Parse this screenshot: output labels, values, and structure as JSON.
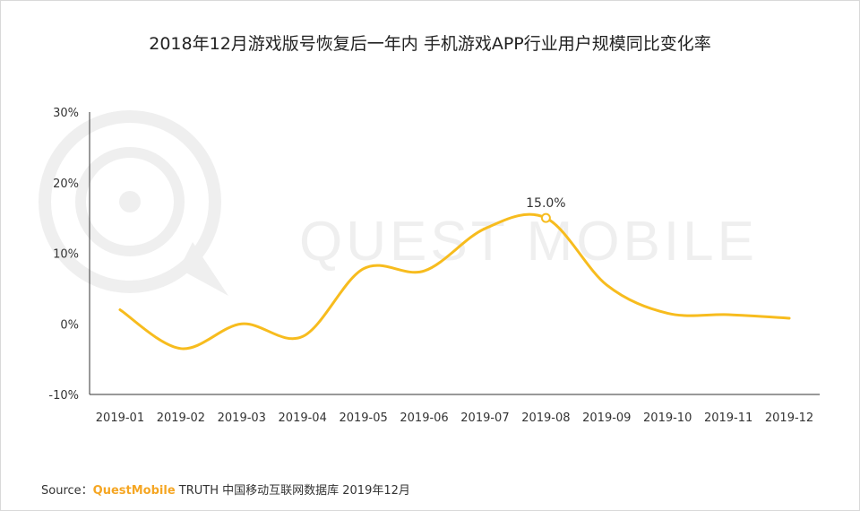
{
  "title": "2018年12月游戏版号恢复后一年内 手机游戏APP行业用户规模同比变化率",
  "watermark": "QUEST MOBILE",
  "source": {
    "label": "Source：",
    "brand": "QuestMobile",
    "text": "TRUTH 中国移动互联网数据库 2019年12月"
  },
  "colors": {
    "line": "#f7bc1e",
    "axis": "#333333",
    "text": "#333333",
    "watermark": "#efefef",
    "brand": "#f5a623"
  },
  "chart_data": {
    "type": "line",
    "categories": [
      "2019-01",
      "2019-02",
      "2019-03",
      "2019-04",
      "2019-05",
      "2019-06",
      "2019-07",
      "2019-08",
      "2019-09",
      "2019-10",
      "2019-11",
      "2019-12"
    ],
    "series": [
      {
        "values": [
          2.0,
          -3.5,
          0.0,
          -1.8,
          7.8,
          7.5,
          13.5,
          15.0,
          5.5,
          1.5,
          1.3,
          0.8
        ]
      }
    ],
    "yticks": [
      "30%",
      "20%",
      "10%",
      "0%",
      "-10%"
    ],
    "ylim": [
      -10,
      30
    ],
    "annotations": [
      {
        "category": "2019-08",
        "label": "15.0%"
      }
    ],
    "grid": false,
    "legend": "none"
  }
}
